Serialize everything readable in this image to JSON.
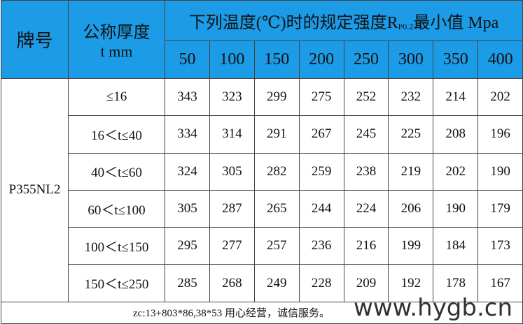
{
  "header": {
    "brand": "牌号",
    "thickness": [
      "公称厚度",
      "t mm"
    ],
    "temp_title": {
      "prefix": "下列温度(℃)时的规定强度R",
      "sub": "P0.2",
      "suffix": "最小值 Mpa"
    },
    "temps": [
      50,
      100,
      150,
      200,
      250,
      300,
      350,
      400
    ]
  },
  "grade": "P355NL2",
  "rows": [
    {
      "thickness": "≤16",
      "values": [
        343,
        323,
        299,
        275,
        252,
        232,
        214,
        202
      ]
    },
    {
      "thickness": "16＜t≤40",
      "values": [
        334,
        314,
        291,
        267,
        245,
        225,
        208,
        196
      ]
    },
    {
      "thickness": "40＜t≤60",
      "values": [
        324,
        305,
        282,
        259,
        238,
        219,
        202,
        190
      ]
    },
    {
      "thickness": "60＜t≤100",
      "values": [
        305,
        287,
        265,
        244,
        224,
        206,
        190,
        179
      ]
    },
    {
      "thickness": "100＜t≤150",
      "values": [
        295,
        277,
        257,
        236,
        216,
        199,
        184,
        173
      ]
    },
    {
      "thickness": "150＜t≤250",
      "values": [
        285,
        268,
        249,
        228,
        209,
        192,
        178,
        167
      ]
    }
  ],
  "footer": "zc:13+803*86,38*53 用心经营，诚信服务。",
  "watermark": "www.hygb.cn"
}
